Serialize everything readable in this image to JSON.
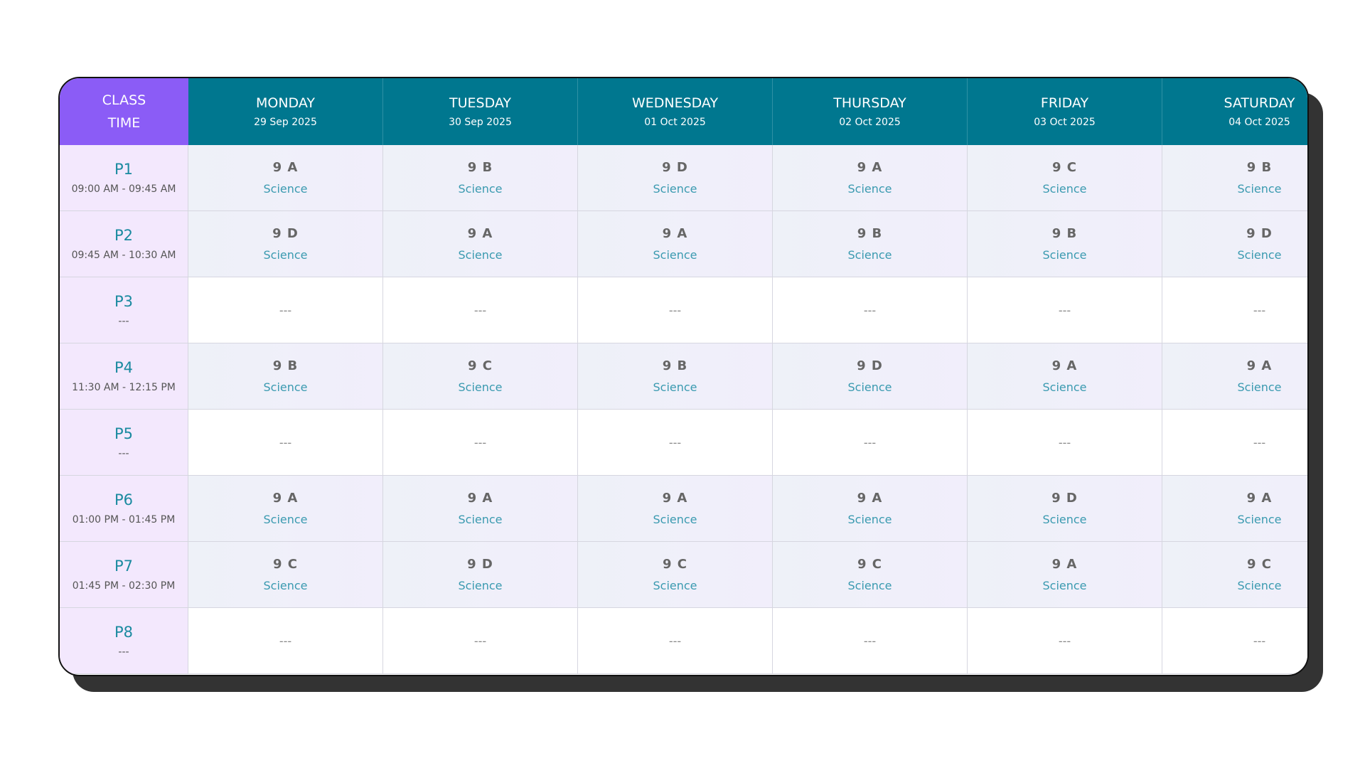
{
  "header": {
    "corner": "CLASS TIME",
    "days": [
      {
        "name": "MONDAY",
        "date": "29 Sep 2025"
      },
      {
        "name": "TUESDAY",
        "date": "30 Sep 2025"
      },
      {
        "name": "WEDNESDAY",
        "date": "01 Oct 2025"
      },
      {
        "name": "THURSDAY",
        "date": "02 Oct 2025"
      },
      {
        "name": "FRIDAY",
        "date": "03 Oct 2025"
      },
      {
        "name": "SATURDAY",
        "date": "04 Oct 2025"
      }
    ]
  },
  "periods": [
    {
      "label": "P1",
      "time": "09:00 AM - 09:45 AM",
      "cells": [
        {
          "class": "9 A",
          "subject": "Science"
        },
        {
          "class": "9 B",
          "subject": "Science"
        },
        {
          "class": "9 D",
          "subject": "Science"
        },
        {
          "class": "9 A",
          "subject": "Science"
        },
        {
          "class": "9 C",
          "subject": "Science"
        },
        {
          "class": "9 B",
          "subject": "Science"
        }
      ]
    },
    {
      "label": "P2",
      "time": "09:45 AM - 10:30 AM",
      "cells": [
        {
          "class": "9 D",
          "subject": "Science"
        },
        {
          "class": "9 A",
          "subject": "Science"
        },
        {
          "class": "9 A",
          "subject": "Science"
        },
        {
          "class": "9 B",
          "subject": "Science"
        },
        {
          "class": "9 B",
          "subject": "Science"
        },
        {
          "class": "9 D",
          "subject": "Science"
        }
      ]
    },
    {
      "label": "P3",
      "time": "---",
      "cells": [
        "---",
        "---",
        "---",
        "---",
        "---",
        "---"
      ]
    },
    {
      "label": "P4",
      "time": "11:30 AM - 12:15 PM",
      "cells": [
        {
          "class": "9 B",
          "subject": "Science"
        },
        {
          "class": "9 C",
          "subject": "Science"
        },
        {
          "class": "9 B",
          "subject": "Science"
        },
        {
          "class": "9 D",
          "subject": "Science"
        },
        {
          "class": "9 A",
          "subject": "Science"
        },
        {
          "class": "9 A",
          "subject": "Science"
        }
      ]
    },
    {
      "label": "P5",
      "time": "---",
      "cells": [
        "---",
        "---",
        "---",
        "---",
        "---",
        "---"
      ]
    },
    {
      "label": "P6",
      "time": "01:00 PM - 01:45 PM",
      "cells": [
        {
          "class": "9 A",
          "subject": "Science"
        },
        {
          "class": "9 A",
          "subject": "Science"
        },
        {
          "class": "9 A",
          "subject": "Science"
        },
        {
          "class": "9 A",
          "subject": "Science"
        },
        {
          "class": "9 D",
          "subject": "Science"
        },
        {
          "class": "9 A",
          "subject": "Science"
        }
      ]
    },
    {
      "label": "P7",
      "time": "01:45 PM - 02:30 PM",
      "cells": [
        {
          "class": "9 C",
          "subject": "Science"
        },
        {
          "class": "9 D",
          "subject": "Science"
        },
        {
          "class": "9 C",
          "subject": "Science"
        },
        {
          "class": "9 C",
          "subject": "Science"
        },
        {
          "class": "9 A",
          "subject": "Science"
        },
        {
          "class": "9 C",
          "subject": "Science"
        }
      ]
    },
    {
      "label": "P8",
      "time": "---",
      "cells": [
        "---",
        "---",
        "---",
        "---",
        "---",
        "---"
      ]
    }
  ]
}
